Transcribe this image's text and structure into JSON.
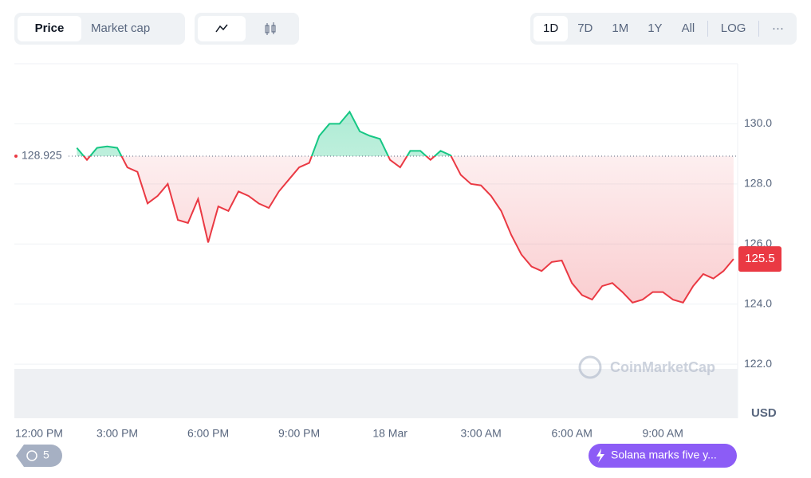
{
  "tabs": [
    "Price",
    "Market cap"
  ],
  "ranges": [
    "1D",
    "7D",
    "1M",
    "1Y",
    "All",
    "LOG",
    "···"
  ],
  "history_count": "5",
  "news": "Solana marks five y...",
  "watermark": "CoinMarketCap",
  "chart_data": {
    "type": "line",
    "currency": "USD",
    "reference_value": 128.925,
    "categories": [
      "12:00 PM",
      null,
      null,
      null,
      null,
      null,
      null,
      null,
      null,
      "3:00 PM",
      null,
      null,
      null,
      null,
      null,
      null,
      null,
      null,
      "6:00 PM",
      null,
      null,
      null,
      null,
      null,
      null,
      null,
      null,
      "9:00 PM",
      null,
      null,
      null,
      null,
      null,
      null,
      null,
      null,
      "18 Mar",
      null,
      null,
      null,
      null,
      null,
      null,
      null,
      null,
      "3:00 AM",
      null,
      null,
      null,
      null,
      null,
      null,
      null,
      null,
      "6:00 AM",
      null,
      null,
      null,
      null,
      null,
      null,
      null,
      null,
      "9:00 AM",
      null,
      null,
      null,
      null,
      null,
      null,
      null
    ],
    "values": [
      null,
      null,
      null,
      null,
      null,
      129.2,
      128.8,
      129.2,
      129.25,
      129.2,
      128.55,
      128.4,
      127.35,
      127.6,
      128.0,
      126.8,
      126.7,
      127.5,
      126.05,
      127.25,
      127.1,
      127.75,
      127.6,
      127.35,
      127.2,
      127.75,
      128.15,
      128.55,
      128.7,
      129.6,
      130.0,
      130.0,
      130.4,
      129.75,
      129.6,
      129.5,
      128.8,
      128.55,
      129.1,
      129.1,
      128.8,
      129.1,
      128.95,
      128.3,
      128.0,
      127.95,
      127.6,
      127.1,
      126.3,
      125.65,
      125.25,
      125.1,
      125.4,
      125.45,
      124.7,
      124.3,
      124.15,
      124.6,
      124.7,
      124.4,
      124.05,
      124.15,
      124.4,
      124.4,
      124.15,
      124.05,
      124.6,
      125.0,
      124.85,
      125.1,
      125.5
    ],
    "up_color": "#16c784",
    "down_color": "#ea3943",
    "ylim": [
      120.2,
      132
    ],
    "yticks": [
      {
        "value": 122,
        "label": "122.0"
      },
      {
        "value": 124,
        "label": "124.0"
      },
      {
        "value": 126,
        "label": "126.0"
      },
      {
        "value": 128,
        "label": "128.0"
      },
      {
        "value": 130,
        "label": "130.0"
      }
    ],
    "grid": true
  }
}
